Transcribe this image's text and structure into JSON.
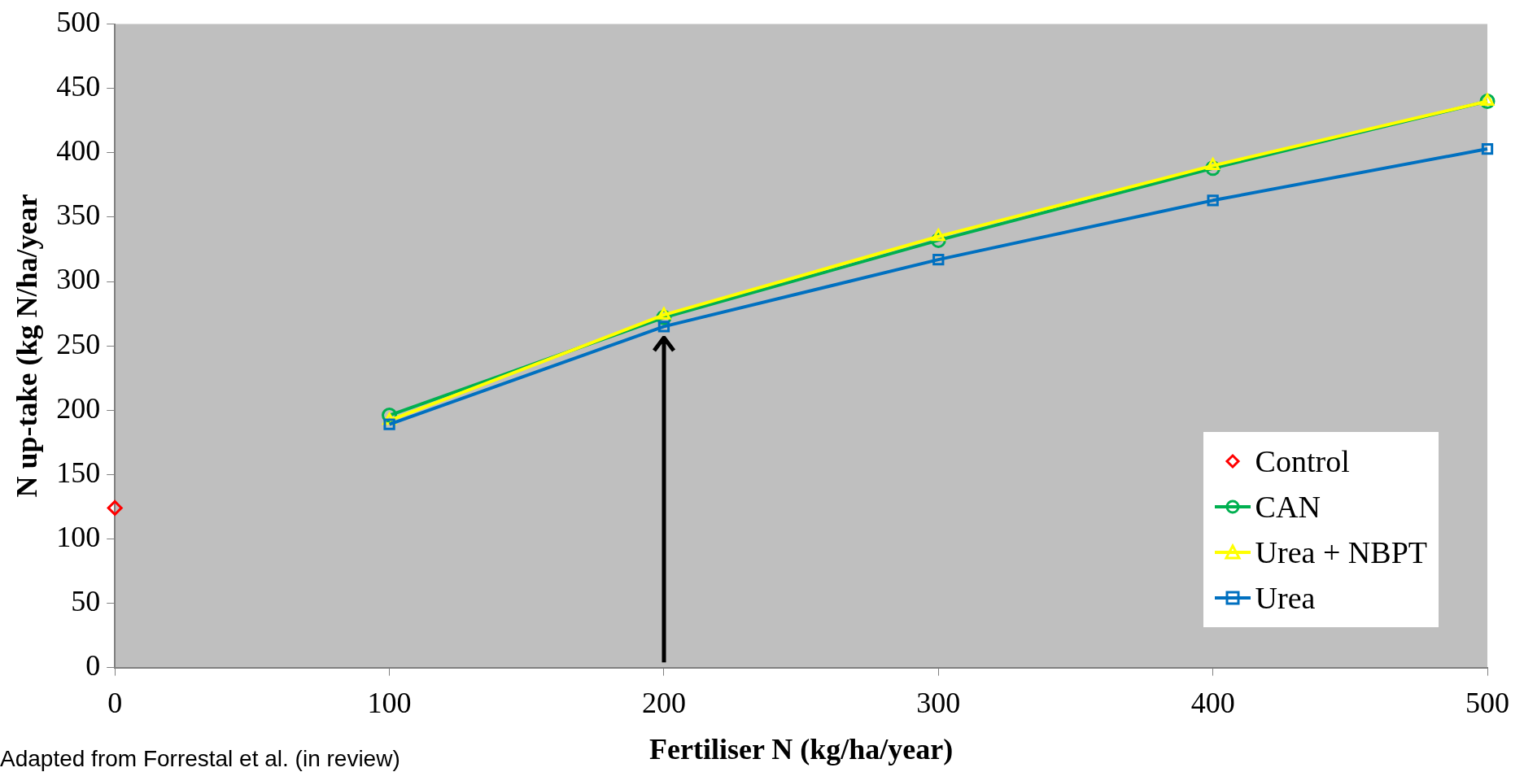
{
  "chart_data": {
    "type": "line",
    "xlabel": "Fertiliser N (kg/ha/year)",
    "ylabel": "N up-take (kg N/ha/year",
    "annotations": [
      "Adapted from Forrestal et al. (in review)"
    ],
    "xlim": [
      0,
      500
    ],
    "xticks": [
      0,
      100,
      200,
      300,
      400,
      500
    ],
    "ylim": [
      0,
      500
    ],
    "yticks": [
      0,
      50,
      100,
      150,
      200,
      250,
      300,
      350,
      400,
      450,
      500
    ],
    "grid": false,
    "legend": "bottom right",
    "series": [
      {
        "name": "Control",
        "type": "scatter",
        "marker": "diamond",
        "color": "#ff0000",
        "x": [
          0
        ],
        "values": [
          124
        ]
      },
      {
        "name": "CAN",
        "marker": "circle",
        "color": "#00b050",
        "x": [
          100,
          200,
          300,
          400,
          500
        ],
        "values": [
          196,
          272,
          332,
          388,
          440
        ]
      },
      {
        "name": "Urea + NBPT",
        "marker": "triangle",
        "color": "#ffff00",
        "x": [
          100,
          200,
          300,
          400,
          500
        ],
        "values": [
          192,
          274,
          335,
          390,
          440
        ]
      },
      {
        "name": "Urea",
        "marker": "square",
        "color": "#0070c0",
        "x": [
          100,
          200,
          300,
          400,
          500
        ],
        "values": [
          189,
          265,
          317,
          363,
          403
        ]
      }
    ]
  }
}
